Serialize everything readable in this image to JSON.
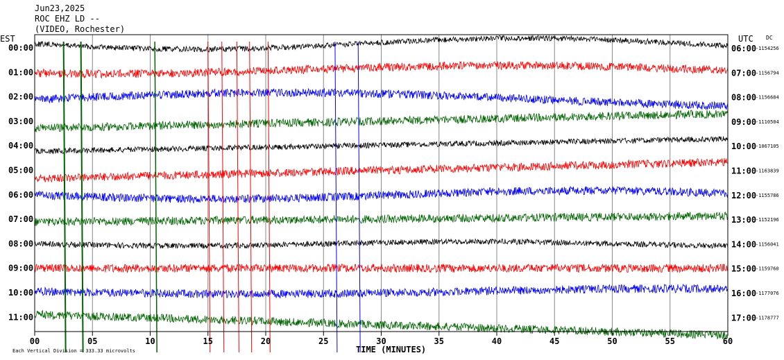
{
  "header": {
    "date": "Jun23,2025",
    "station": "ROC EHZ LD --",
    "location": "(VIDEO, Rochester)"
  },
  "left_axis_title": "EST",
  "right_axis_title": "UTC",
  "dc_title": "DC",
  "footer_note": "Each Vertical Division = 333.33 microvolts",
  "chart_data": {
    "type": "line",
    "title": "Jun23,2025 ROC EHZ LD -- (VIDEO, Rochester)",
    "xlabel": "TIME (MINUTES)",
    "xlim": [
      0,
      60
    ],
    "x_ticks": [
      "00",
      "05",
      "10",
      "15",
      "20",
      "25",
      "30",
      "35",
      "40",
      "45",
      "50",
      "55",
      "60"
    ],
    "trace_colors": [
      "#000000",
      "#ff0000",
      "#0000ff",
      "#006400"
    ],
    "rows": [
      {
        "est": "00:00",
        "utc": "06:00",
        "dc": "-1154256"
      },
      {
        "est": "01:00",
        "utc": "07:00",
        "dc": "-1156794"
      },
      {
        "est": "02:00",
        "utc": "08:00",
        "dc": "-1156684"
      },
      {
        "est": "03:00",
        "utc": "09:00",
        "dc": "-1110504"
      },
      {
        "est": "04:00",
        "utc": "10:00",
        "dc": "-1067105"
      },
      {
        "est": "05:00",
        "utc": "11:00",
        "dc": "-1163839"
      },
      {
        "est": "06:00",
        "utc": "12:00",
        "dc": "-1155786"
      },
      {
        "est": "07:00",
        "utc": "13:00",
        "dc": "-1152196"
      },
      {
        "est": "08:00",
        "utc": "14:00",
        "dc": "-1156041"
      },
      {
        "est": "09:00",
        "utc": "15:00",
        "dc": "-1159760"
      },
      {
        "est": "10:00",
        "utc": "16:00",
        "dc": "-1177076"
      },
      {
        "est": "11:00",
        "utc": "17:00",
        "dc": "-1178777"
      }
    ]
  }
}
